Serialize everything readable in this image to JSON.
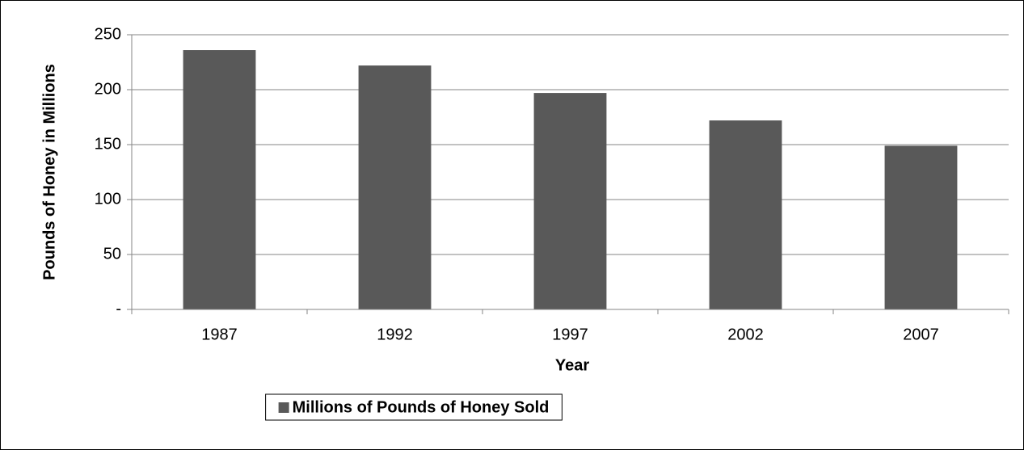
{
  "chart_data": {
    "type": "bar",
    "x_label": "Year",
    "y_label": "Pounds of Honey in Millions",
    "categories": [
      "1987",
      "1992",
      "1997",
      "2002",
      "2007"
    ],
    "series": [
      {
        "name": "Millions of Pounds of Honey Sold",
        "color": "#595959",
        "values": [
          236,
          222,
          197,
          172,
          149
        ]
      }
    ],
    "ylim": [
      0,
      250
    ],
    "yticks": [
      {
        "value": 0,
        "label": "-"
      },
      50,
      100,
      150,
      200,
      250
    ],
    "grid": true,
    "legend": "bottom"
  }
}
